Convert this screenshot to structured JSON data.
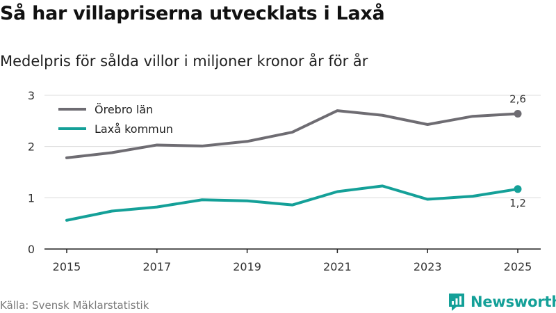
{
  "title": "Så har villapriserna utvecklats i Laxå",
  "subtitle": "Medelpris för sålda villor i miljoner kronor år för år",
  "source": "Källa: Svensk Mäklarstatistik",
  "brand": {
    "name": "Newsworthy",
    "icon": "newsworthy-logo-icon",
    "color": "#14a098"
  },
  "chart_data": {
    "type": "line",
    "title": "Så har villapriserna utvecklats i Laxå",
    "subtitle": "Medelpris för sålda villor i miljoner kronor år för år",
    "xlabel": "",
    "ylabel": "",
    "x": [
      2015,
      2016,
      2017,
      2018,
      2019,
      2020,
      2021,
      2022,
      2023,
      2024,
      2025
    ],
    "x_tick_labels": [
      "2015",
      "2017",
      "2019",
      "2021",
      "2023",
      "2025"
    ],
    "y_ticks": [
      0,
      1,
      2,
      3
    ],
    "y_tick_labels": [
      "0",
      "1",
      "2",
      "3"
    ],
    "ylim": [
      0,
      3
    ],
    "grid": true,
    "legend_position": "top-left",
    "series": [
      {
        "name": "Örebro län",
        "color": "#6e6c72",
        "values": [
          1.78,
          1.88,
          2.03,
          2.01,
          2.1,
          2.28,
          2.7,
          2.61,
          2.43,
          2.59,
          2.64
        ],
        "end_label": "2,6"
      },
      {
        "name": "Laxå kommun",
        "color": "#14a098",
        "values": [
          0.56,
          0.74,
          0.82,
          0.96,
          0.94,
          0.86,
          1.12,
          1.23,
          0.97,
          1.03,
          1.17
        ],
        "end_label": "1,2"
      }
    ]
  }
}
